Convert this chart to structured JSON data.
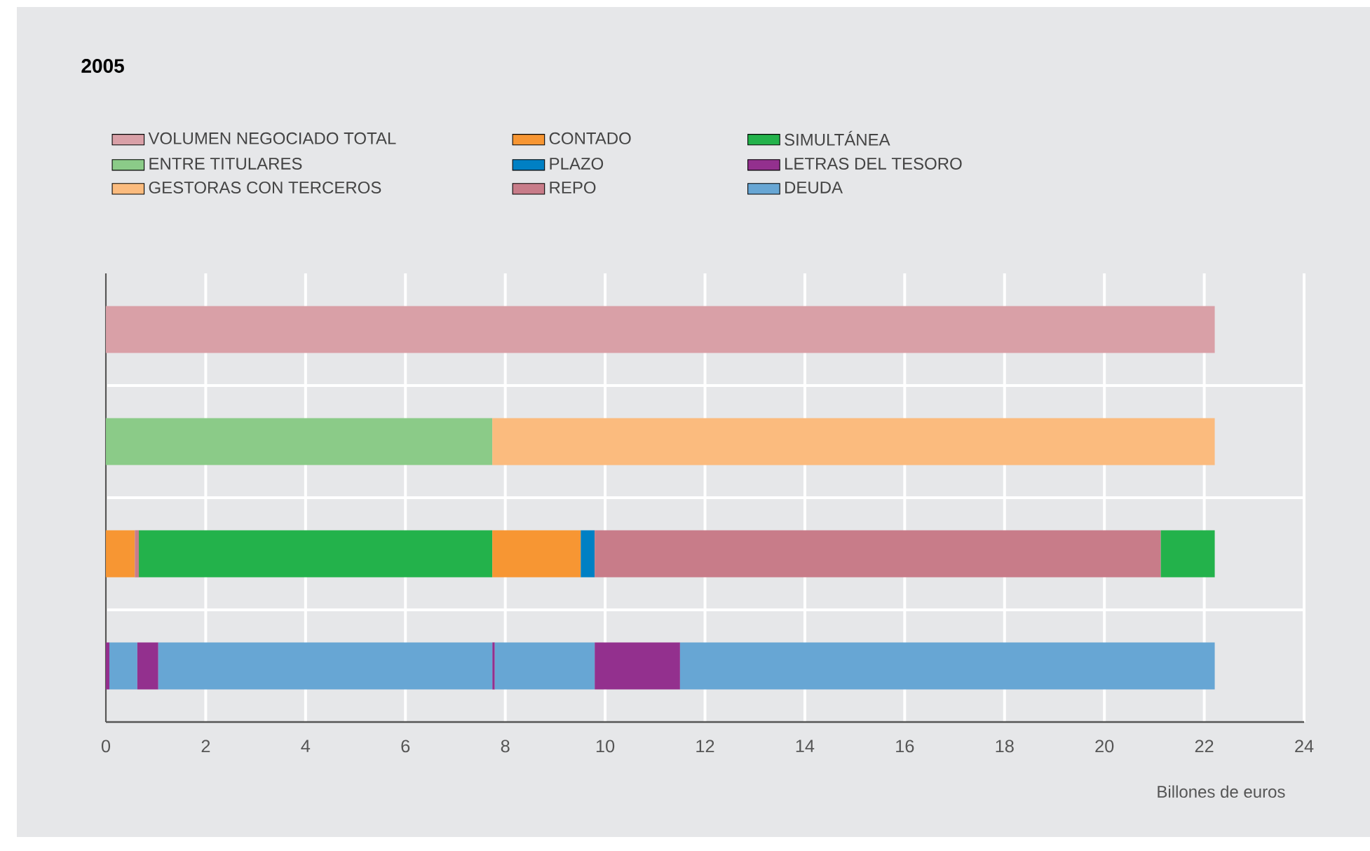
{
  "chart_data": {
    "type": "bar",
    "orientation": "horizontal",
    "title": "2005",
    "xlabel": "Billones de euros",
    "categories": [
      null,
      null,
      null,
      null
    ],
    "xlim": [
      0,
      24
    ],
    "xticks": [
      0,
      2,
      4,
      6,
      8,
      10,
      12,
      14,
      16,
      18,
      20,
      22,
      24
    ],
    "grid": true,
    "legend": "top",
    "series": [
      {
        "name": "VOLUMEN NEGOCIADO TOTAL",
        "color": "#d9a0a7",
        "base": [
          0,
          null,
          null,
          null
        ],
        "values": [
          22.21,
          null,
          null,
          null
        ]
      },
      {
        "name": "ENTRE TITULARES",
        "color": "#8bcb88",
        "base": [
          null,
          0,
          null,
          null
        ],
        "values": [
          null,
          7.74,
          null,
          null
        ]
      },
      {
        "name": "GESTORAS CON TERCEROS",
        "color": "#fbbb7e",
        "base": [
          null,
          7.74,
          null,
          null
        ],
        "values": [
          null,
          14.47,
          null,
          null
        ]
      },
      {
        "name": "CONTADO",
        "color": "#f79633",
        "base": [
          null,
          null,
          0,
          null
        ],
        "values": [
          null,
          null,
          0.58,
          null
        ]
      },
      {
        "name": "PLAZO",
        "color": "#0080c4",
        "base": [
          null,
          null,
          9.51,
          null
        ],
        "values": [
          null,
          null,
          0.28,
          null
        ]
      },
      {
        "name": "REPO",
        "color": "#c87c89",
        "base": [
          null,
          null,
          0.58,
          null
        ],
        "values": [
          null,
          null,
          0.08,
          null
        ]
      },
      {
        "name": "SIMULTÁNEA",
        "color": "#23b24b",
        "base": [
          null,
          null,
          0.66,
          null
        ],
        "values": [
          null,
          null,
          7.08,
          null
        ]
      },
      {
        "name": "LETRAS DEL TESORO",
        "color": "#93308e",
        "base": [
          null,
          null,
          null,
          0
        ],
        "values": [
          null,
          null,
          null,
          0.07
        ]
      },
      {
        "name": "DEUDA",
        "color": "#67a6d4",
        "base": [
          null,
          null,
          null,
          0.07
        ],
        "values": [
          null,
          null,
          null,
          0.56
        ]
      },
      {
        "color": "#f79633",
        "base": [
          null,
          null,
          7.74,
          null
        ],
        "values": [
          null,
          null,
          1.77,
          null
        ]
      },
      {
        "color": "#c87c89",
        "base": [
          null,
          null,
          9.79,
          null
        ],
        "values": [
          null,
          null,
          11.34,
          null
        ]
      },
      {
        "color": "#23b24b",
        "base": [
          null,
          null,
          21.13,
          null
        ],
        "values": [
          null,
          null,
          1.08,
          null
        ]
      },
      {
        "color": "#93308e",
        "base": [
          null,
          null,
          null,
          0.63
        ],
        "values": [
          null,
          null,
          null,
          0.42
        ]
      },
      {
        "color": "#93308e",
        "base": [
          null,
          null,
          null,
          7.74
        ],
        "values": [
          null,
          null,
          null,
          0.05
        ]
      },
      {
        "color": "#93308e",
        "base": [
          null,
          null,
          null,
          9.79
        ],
        "values": [
          null,
          null,
          null,
          1.71
        ]
      },
      {
        "color": "#67a6d4",
        "base": [
          null,
          null,
          null,
          1.05
        ],
        "values": [
          null,
          null,
          null,
          6.69
        ]
      },
      {
        "color": "#67a6d4",
        "base": [
          null,
          null,
          null,
          7.79
        ],
        "values": [
          null,
          null,
          null,
          2.0
        ]
      },
      {
        "color": "#67a6d4",
        "base": [
          null,
          null,
          null,
          11.5
        ],
        "values": [
          null,
          null,
          null,
          10.71
        ]
      }
    ]
  }
}
